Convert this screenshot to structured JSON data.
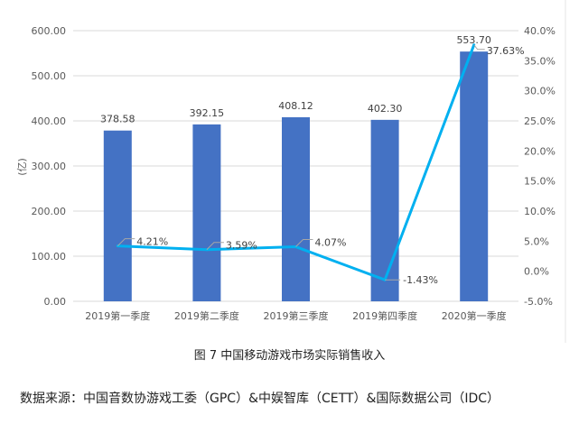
{
  "chart_data": {
    "type": "bar+line",
    "categories": [
      "2019第一季度",
      "2019第二季度",
      "2019第三季度",
      "2019第四季度",
      "2020第一季度"
    ],
    "series": [
      {
        "type": "bar",
        "axis": "left",
        "values": [
          378.58,
          392.15,
          408.12,
          402.3,
          553.7
        ],
        "labels": [
          "378.58",
          "392.15",
          "408.12",
          "402.30",
          "553.70"
        ],
        "color": "#4472C4"
      },
      {
        "type": "line",
        "axis": "right",
        "values": [
          4.21,
          3.59,
          4.07,
          -1.43,
          37.63
        ],
        "labels": [
          "4.21%",
          "3.59%",
          "4.07%",
          "-1.43%",
          "37.63%"
        ],
        "color": "#00B0F0"
      }
    ],
    "ylabel": "(亿)",
    "ylim": [
      0,
      600
    ],
    "yticks": [
      "0.00",
      "100.00",
      "200.00",
      "300.00",
      "400.00",
      "500.00",
      "600.00"
    ],
    "y2lim": [
      -5,
      40
    ],
    "y2ticks": [
      "-5.0%",
      "0.0%",
      "5.0%",
      "10.0%",
      "15.0%",
      "20.0%",
      "25.0%",
      "30.0%",
      "35.0%",
      "40.0%"
    ],
    "grid": true
  },
  "caption": "图 7  中国移动游戏市场实际销售收入",
  "source": "数据来源：中国音数协游戏工委（GPC）&中娱智库（CETT）&国际数据公司（IDC）"
}
